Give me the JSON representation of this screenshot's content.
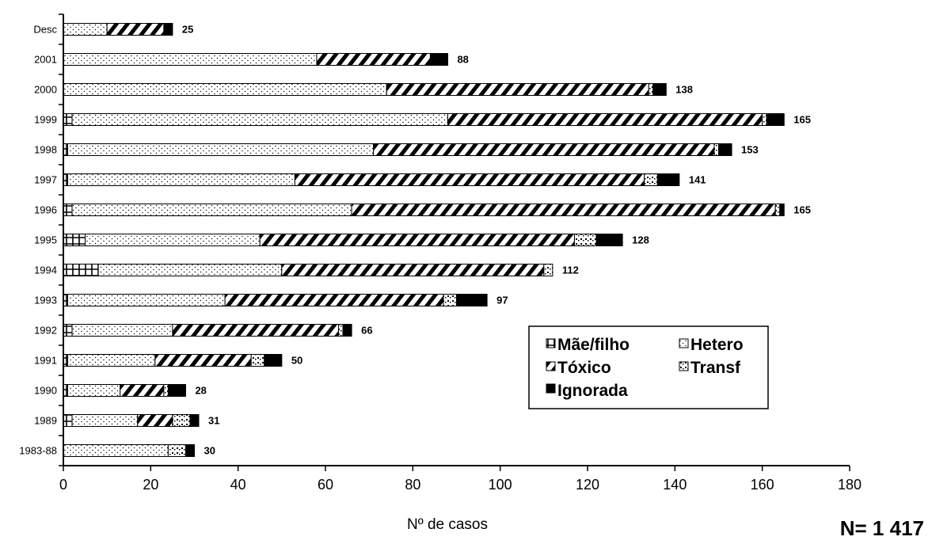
{
  "chart_data": {
    "type": "bar",
    "orientation": "horizontal",
    "stacked": true,
    "categories": [
      "Desc",
      "2001",
      "2000",
      "1999",
      "1998",
      "1997",
      "1996",
      "1995",
      "1994",
      "1993",
      "1992",
      "1991",
      "1990",
      "1989",
      "1983-88"
    ],
    "series": [
      {
        "name": "Mãe/filho",
        "values": [
          0,
          0,
          0,
          2,
          1,
          1,
          2,
          5,
          8,
          1,
          2,
          1,
          1,
          2,
          0
        ],
        "color": "#ffffff"
      },
      {
        "name": "Hetero",
        "values": [
          10,
          58,
          74,
          86,
          70,
          52,
          64,
          40,
          42,
          36,
          23,
          20,
          12,
          15,
          24
        ],
        "color": "#ffffff"
      },
      {
        "name": "Tóxico",
        "values": [
          13,
          26,
          60,
          72,
          78,
          80,
          97,
          72,
          60,
          50,
          38,
          22,
          10,
          8,
          0
        ],
        "color": "#ffffff"
      },
      {
        "name": "Transf",
        "values": [
          0,
          0,
          1,
          1,
          1,
          3,
          1,
          5,
          2,
          3,
          1,
          3,
          1,
          4,
          4
        ],
        "color": "#ffffff"
      },
      {
        "name": "Ignorada",
        "values": [
          2,
          4,
          3,
          4,
          3,
          5,
          1,
          6,
          0,
          7,
          2,
          4,
          4,
          2,
          2
        ],
        "color": "#000000"
      }
    ],
    "totals": [
      25,
      88,
      138,
      165,
      153,
      141,
      165,
      128,
      112,
      97,
      66,
      50,
      28,
      31,
      30
    ],
    "xlabel": "Nº de casos",
    "xlim": [
      0,
      180
    ],
    "xticks": [
      0,
      20,
      40,
      60,
      80,
      100,
      120,
      140,
      160,
      180
    ],
    "grid": false,
    "legend_position": "inside-lower-right",
    "legend": {
      "items": [
        "Mãe/filho",
        "Hetero",
        "Tóxico",
        "Transf",
        "Ignorada"
      ]
    }
  },
  "total_note": "N= 1 417"
}
